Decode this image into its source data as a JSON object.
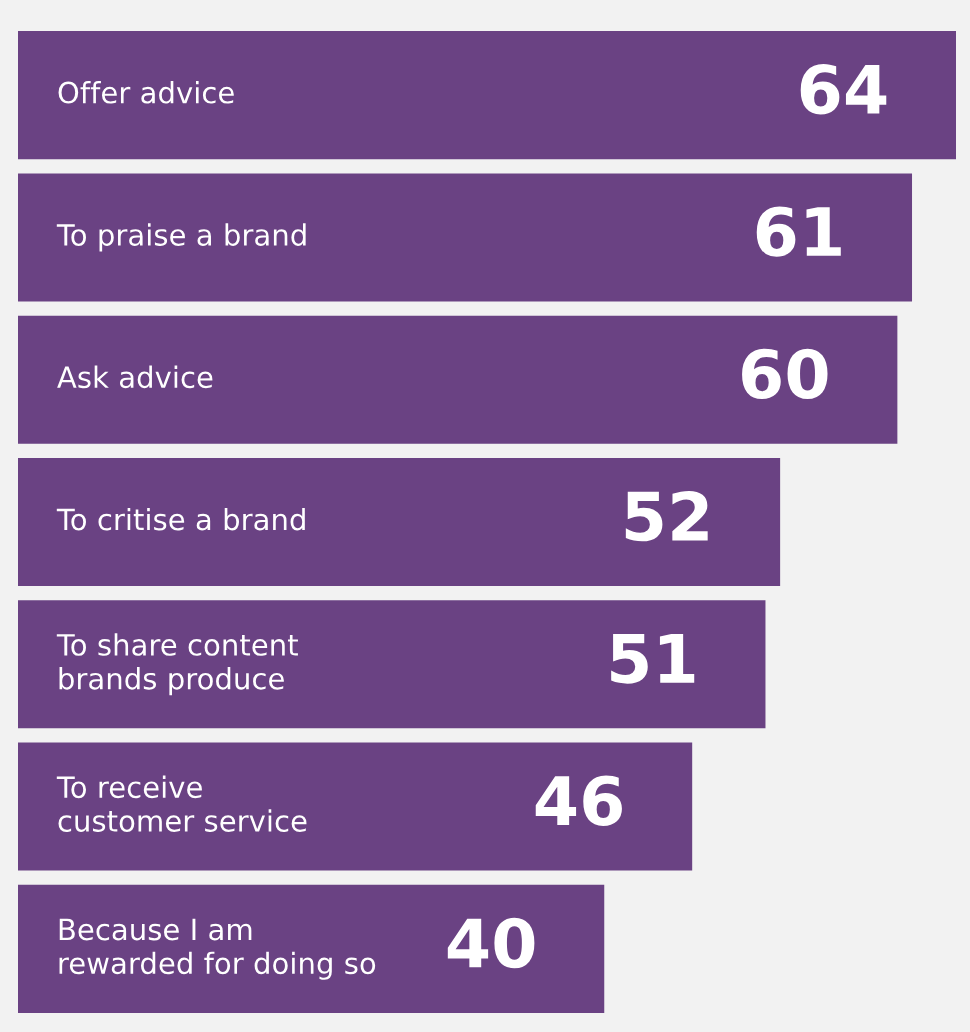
{
  "chart_data": {
    "type": "bar",
    "orientation": "horizontal",
    "categories": [
      "Offer advice",
      "To praise a brand",
      "Ask advice",
      "To critise a brand",
      "To share content\nbrands produce",
      "To receive\ncustomer service",
      "Because I am\nrewarded for doing so"
    ],
    "values": [
      64,
      61,
      60,
      52,
      51,
      46,
      40
    ],
    "color": "#6a4283",
    "data_labels": true
  }
}
